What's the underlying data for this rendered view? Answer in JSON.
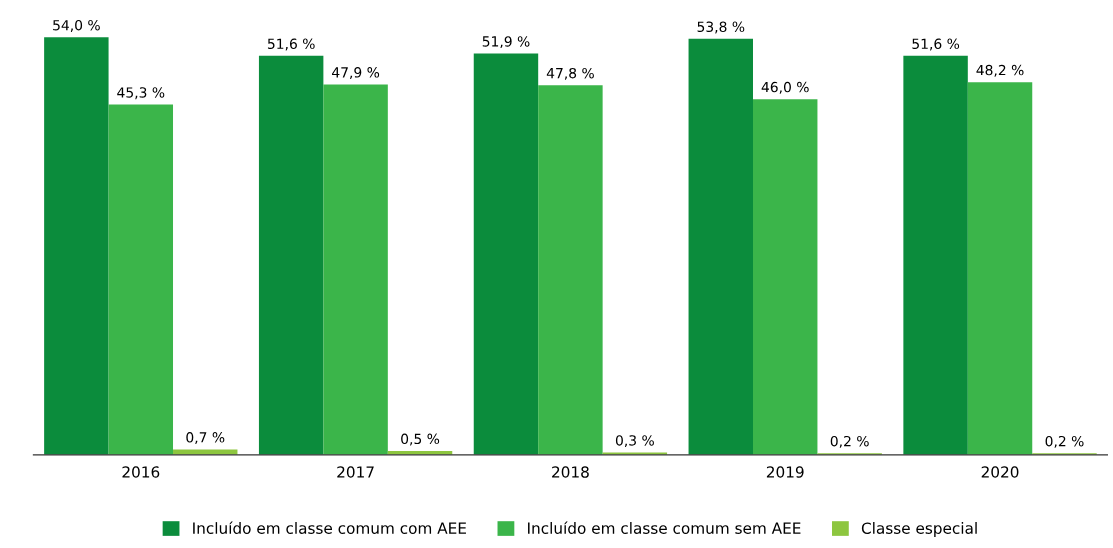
{
  "chart_data": {
    "type": "bar",
    "categories": [
      "2016",
      "2017",
      "2018",
      "2019",
      "2020"
    ],
    "series": [
      {
        "name": "Incluído em classe comum com AEE",
        "color": "#0b8c3c",
        "values": [
          54.0,
          51.6,
          51.9,
          53.8,
          51.6
        ],
        "value_labels": [
          "54,0 %",
          "51,6 %",
          "51,9 %",
          "53,8 %",
          "51,6 %"
        ]
      },
      {
        "name": "Incluído em classe comum sem AEE",
        "color": "#3bb54a",
        "values": [
          45.3,
          47.9,
          47.8,
          46.0,
          48.2
        ],
        "value_labels": [
          "45,3 %",
          "47,9 %",
          "47,8 %",
          "46,0 %",
          "48,2 %"
        ]
      },
      {
        "name": "Classe especial",
        "color": "#8dc63f",
        "values": [
          0.7,
          0.5,
          0.3,
          0.2,
          0.2
        ],
        "value_labels": [
          "0,7 %",
          "0,5 %",
          "0,3 %",
          "0,2 %",
          "0,2 %"
        ]
      }
    ],
    "legend": "bottom",
    "grid": false
  }
}
